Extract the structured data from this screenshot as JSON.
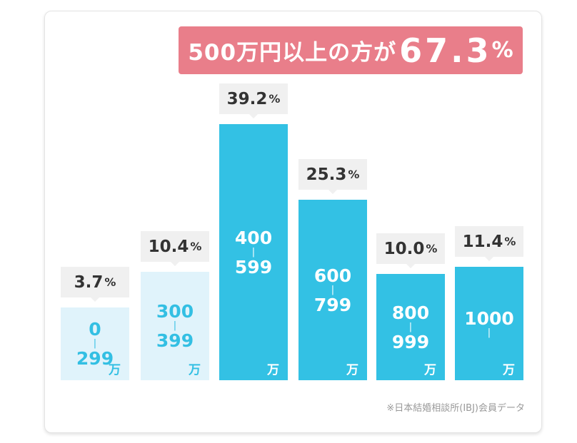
{
  "chart_data": {
    "type": "bar",
    "categories": [
      {
        "top": "0",
        "bottom": "299",
        "unit": "万"
      },
      {
        "top": "300",
        "bottom": "399",
        "unit": "万"
      },
      {
        "top": "400",
        "bottom": "599",
        "unit": "万"
      },
      {
        "top": "600",
        "bottom": "799",
        "unit": "万"
      },
      {
        "top": "800",
        "bottom": "999",
        "unit": "万"
      },
      {
        "top": "1000",
        "bottom": "",
        "unit": "万"
      }
    ],
    "values": [
      3.7,
      10.4,
      39.2,
      25.3,
      10.0,
      11.4
    ],
    "value_labels": [
      "3.7",
      "10.4",
      "39.2",
      "25.3",
      "10.0",
      "11.4"
    ],
    "percent_sign": "%",
    "range_separator": "|",
    "highlight": {
      "text": "500万円以上の方が",
      "value": "67.3",
      "percent": "%"
    },
    "source_note": "※日本結婚相談所(IBJ)会員データ",
    "colors": {
      "light_bar": "#e0f3fb",
      "light_text": "#33bfe3",
      "dark_bar": "#33c1e4",
      "banner": "#e97e8a",
      "label_bg": "#f0f0f0"
    },
    "styles": [
      "light",
      "light",
      "dark",
      "dark",
      "dark",
      "dark"
    ]
  }
}
